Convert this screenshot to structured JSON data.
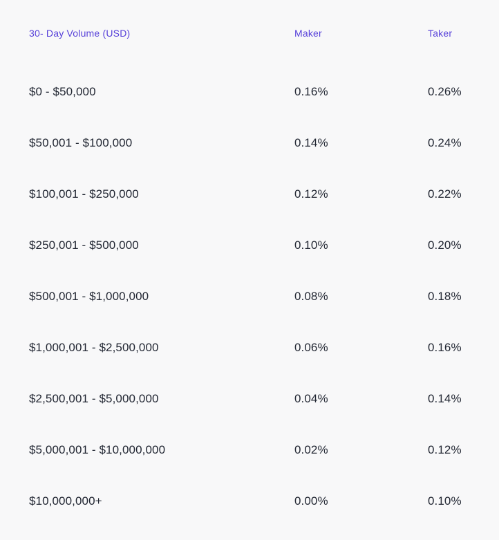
{
  "colors": {
    "accent_purple": "#5741d9",
    "body_text": "#222733",
    "background": "#f8f8f9"
  },
  "table": {
    "columns": [
      {
        "label": "30- Day Volume (USD)"
      },
      {
        "label": "Maker"
      },
      {
        "label": "Taker"
      }
    ],
    "rows": [
      {
        "volume": "$0 - $50,000",
        "maker": "0.16%",
        "taker": "0.26%"
      },
      {
        "volume": "$50,001 - $100,000",
        "maker": "0.14%",
        "taker": "0.24%"
      },
      {
        "volume": "$100,001 - $250,000",
        "maker": "0.12%",
        "taker": "0.22%"
      },
      {
        "volume": "$250,001 - $500,000",
        "maker": "0.10%",
        "taker": "0.20%"
      },
      {
        "volume": "$500,001 - $1,000,000",
        "maker": "0.08%",
        "taker": "0.18%"
      },
      {
        "volume": "$1,000,001 - $2,500,000",
        "maker": "0.06%",
        "taker": "0.16%"
      },
      {
        "volume": "$2,500,001 - $5,000,000",
        "maker": "0.04%",
        "taker": "0.14%"
      },
      {
        "volume": "$5,000,001 - $10,000,000",
        "maker": "0.02%",
        "taker": "0.12%"
      },
      {
        "volume": "$10,000,000+",
        "maker": "0.00%",
        "taker": "0.10%"
      }
    ]
  }
}
